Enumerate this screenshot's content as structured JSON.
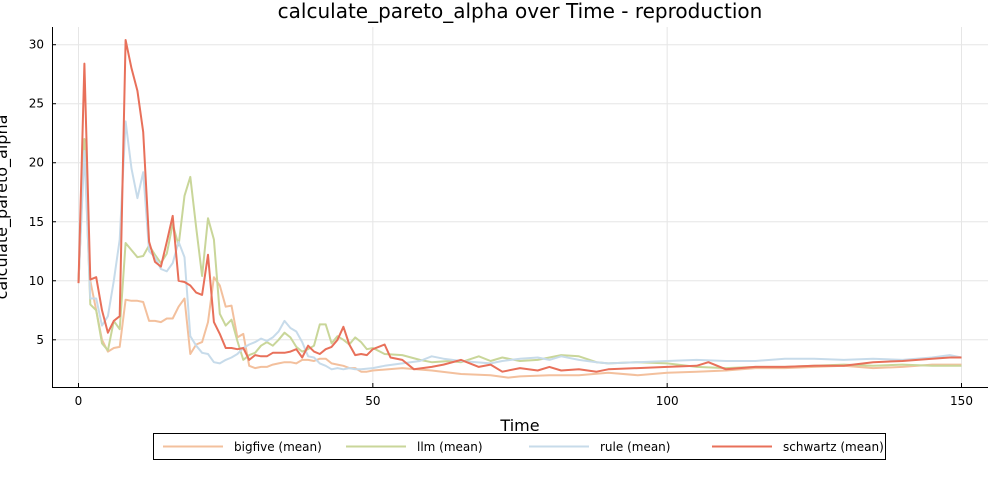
{
  "chart_data": {
    "type": "line",
    "title": "calculate_pareto_alpha over Time - reproduction",
    "xlabel": "Time",
    "ylabel": "calculate_pareto_alpha",
    "xlim": [
      -4.5,
      154.5
    ],
    "ylim": [
      1.0,
      31.5
    ],
    "xticks": [
      0,
      50,
      100,
      150
    ],
    "yticks": [
      5,
      10,
      15,
      20,
      25,
      30
    ],
    "grid": true,
    "legend_position": "bottom-center, outside plot, horizontal",
    "series": [
      {
        "name": "bigfive (mean)",
        "color": "#f3c09d",
        "points": [
          [
            0,
            9.8
          ],
          [
            1,
            22
          ],
          [
            2,
            10
          ],
          [
            3,
            7.5
          ],
          [
            4,
            5
          ],
          [
            5,
            4
          ],
          [
            6,
            4.3
          ],
          [
            7,
            4.4
          ],
          [
            8,
            8.4
          ],
          [
            9,
            8.3
          ],
          [
            10,
            8.3
          ],
          [
            11,
            8.2
          ],
          [
            12,
            6.6
          ],
          [
            13,
            6.6
          ],
          [
            14,
            6.5
          ],
          [
            15,
            6.8
          ],
          [
            16,
            6.8
          ],
          [
            17,
            7.8
          ],
          [
            18,
            8.5
          ],
          [
            19,
            3.8
          ],
          [
            20,
            4.6
          ],
          [
            21,
            4.8
          ],
          [
            22,
            6.5
          ],
          [
            23,
            10.3
          ],
          [
            24,
            9.6
          ],
          [
            25,
            7.8
          ],
          [
            26,
            7.9
          ],
          [
            27,
            5.2
          ],
          [
            28,
            5.5
          ],
          [
            29,
            2.8
          ],
          [
            30,
            2.6
          ],
          [
            31,
            2.7
          ],
          [
            32,
            2.7
          ],
          [
            33,
            2.9
          ],
          [
            34,
            3.0
          ],
          [
            35,
            3.1
          ],
          [
            36,
            3.1
          ],
          [
            37,
            3.0
          ],
          [
            38,
            3.3
          ],
          [
            39,
            3.3
          ],
          [
            40,
            3.2
          ],
          [
            41,
            3.4
          ],
          [
            42,
            3.4
          ],
          [
            43,
            3.0
          ],
          [
            44,
            2.9
          ],
          [
            45,
            2.8
          ],
          [
            46,
            2.6
          ],
          [
            47,
            2.6
          ],
          [
            48,
            2.3
          ],
          [
            49,
            2.3
          ],
          [
            50,
            2.4
          ],
          [
            55,
            2.6
          ],
          [
            60,
            2.4
          ],
          [
            65,
            2.1
          ],
          [
            70,
            2.0
          ],
          [
            73,
            1.8
          ],
          [
            75,
            1.9
          ],
          [
            80,
            2.0
          ],
          [
            85,
            2.0
          ],
          [
            90,
            2.2
          ],
          [
            95,
            2.0
          ],
          [
            100,
            2.2
          ],
          [
            105,
            2.3
          ],
          [
            110,
            2.4
          ],
          [
            115,
            2.6
          ],
          [
            120,
            2.6
          ],
          [
            125,
            2.7
          ],
          [
            130,
            2.8
          ],
          [
            135,
            2.6
          ],
          [
            140,
            2.7
          ],
          [
            145,
            2.9
          ],
          [
            150,
            2.9
          ]
        ]
      },
      {
        "name": "llm (mean)",
        "color": "#c9d699",
        "points": [
          [
            0,
            9.8
          ],
          [
            1,
            22
          ],
          [
            2,
            8
          ],
          [
            3,
            7.5
          ],
          [
            4,
            4.7
          ],
          [
            5,
            4.1
          ],
          [
            6,
            6.6
          ],
          [
            7,
            5.9
          ],
          [
            8,
            13.2
          ],
          [
            9,
            12.6
          ],
          [
            10,
            12.0
          ],
          [
            11,
            12.1
          ],
          [
            12,
            13.0
          ],
          [
            13,
            12.2
          ],
          [
            14,
            11.5
          ],
          [
            15,
            12.3
          ],
          [
            16,
            14.8
          ],
          [
            17,
            13.0
          ],
          [
            18,
            17.2
          ],
          [
            19,
            18.8
          ],
          [
            20,
            14.5
          ],
          [
            21,
            10.4
          ],
          [
            22,
            15.3
          ],
          [
            23,
            13.5
          ],
          [
            24,
            7.2
          ],
          [
            25,
            6.2
          ],
          [
            26,
            6.7
          ],
          [
            27,
            4.9
          ],
          [
            28,
            3.3
          ],
          [
            29,
            3.7
          ],
          [
            30,
            3.9
          ],
          [
            31,
            4.5
          ],
          [
            32,
            4.8
          ],
          [
            33,
            4.5
          ],
          [
            34,
            5.0
          ],
          [
            35,
            5.6
          ],
          [
            36,
            5.2
          ],
          [
            37,
            4.4
          ],
          [
            38,
            4.0
          ],
          [
            39,
            4.2
          ],
          [
            40,
            4.5
          ],
          [
            41,
            6.3
          ],
          [
            42,
            6.3
          ],
          [
            43,
            4.7
          ],
          [
            44,
            5.3
          ],
          [
            45,
            5.0
          ],
          [
            46,
            4.6
          ],
          [
            47,
            5.2
          ],
          [
            48,
            4.8
          ],
          [
            49,
            4.2
          ],
          [
            50,
            4.3
          ],
          [
            52,
            3.8
          ],
          [
            55,
            3.7
          ],
          [
            58,
            3.3
          ],
          [
            60,
            3.1
          ],
          [
            63,
            3.2
          ],
          [
            65,
            3.1
          ],
          [
            68,
            3.6
          ],
          [
            70,
            3.2
          ],
          [
            72,
            3.5
          ],
          [
            75,
            3.2
          ],
          [
            78,
            3.3
          ],
          [
            80,
            3.5
          ],
          [
            82,
            3.7
          ],
          [
            85,
            3.6
          ],
          [
            88,
            3.1
          ],
          [
            90,
            3.0
          ],
          [
            95,
            3.1
          ],
          [
            100,
            3.0
          ],
          [
            105,
            2.7
          ],
          [
            110,
            2.6
          ],
          [
            115,
            2.7
          ],
          [
            120,
            2.7
          ],
          [
            125,
            2.8
          ],
          [
            130,
            2.9
          ],
          [
            135,
            2.8
          ],
          [
            140,
            2.9
          ],
          [
            145,
            2.8
          ],
          [
            150,
            2.8
          ]
        ]
      },
      {
        "name": "rule (mean)",
        "color": "#c7dbea",
        "points": [
          [
            0,
            9.8
          ],
          [
            1,
            21
          ],
          [
            2,
            8.5
          ],
          [
            3,
            8.5
          ],
          [
            4,
            6.2
          ],
          [
            5,
            7
          ],
          [
            6,
            10
          ],
          [
            7,
            13.5
          ],
          [
            8,
            23.5
          ],
          [
            9,
            19.5
          ],
          [
            10,
            17.0
          ],
          [
            11,
            19.2
          ],
          [
            12,
            12.5
          ],
          [
            13,
            12.0
          ],
          [
            14,
            11.0
          ],
          [
            15,
            10.8
          ],
          [
            16,
            11.5
          ],
          [
            17,
            13.3
          ],
          [
            18,
            12.0
          ],
          [
            19,
            5.3
          ],
          [
            20,
            4.5
          ],
          [
            21,
            3.9
          ],
          [
            22,
            3.8
          ],
          [
            23,
            3.1
          ],
          [
            24,
            3.0
          ],
          [
            25,
            3.3
          ],
          [
            26,
            3.5
          ],
          [
            27,
            3.8
          ],
          [
            28,
            4.3
          ],
          [
            29,
            4.6
          ],
          [
            30,
            4.8
          ],
          [
            31,
            5.1
          ],
          [
            32,
            4.9
          ],
          [
            33,
            5.2
          ],
          [
            34,
            5.7
          ],
          [
            35,
            6.6
          ],
          [
            36,
            6.0
          ],
          [
            37,
            5.7
          ],
          [
            38,
            4.8
          ],
          [
            39,
            3.6
          ],
          [
            40,
            3.5
          ],
          [
            41,
            3.0
          ],
          [
            42,
            2.8
          ],
          [
            43,
            2.5
          ],
          [
            44,
            2.6
          ],
          [
            45,
            2.5
          ],
          [
            46,
            2.6
          ],
          [
            47,
            2.5
          ],
          [
            48,
            2.5
          ],
          [
            50,
            2.6
          ],
          [
            52,
            2.8
          ],
          [
            55,
            3.0
          ],
          [
            58,
            3.2
          ],
          [
            60,
            3.6
          ],
          [
            62,
            3.4
          ],
          [
            65,
            3.2
          ],
          [
            70,
            3.0
          ],
          [
            72,
            3.2
          ],
          [
            75,
            3.4
          ],
          [
            78,
            3.5
          ],
          [
            80,
            3.3
          ],
          [
            82,
            3.6
          ],
          [
            85,
            3.3
          ],
          [
            88,
            3.1
          ],
          [
            90,
            3.0
          ],
          [
            95,
            3.1
          ],
          [
            100,
            3.2
          ],
          [
            105,
            3.3
          ],
          [
            110,
            3.2
          ],
          [
            115,
            3.2
          ],
          [
            120,
            3.4
          ],
          [
            125,
            3.4
          ],
          [
            130,
            3.3
          ],
          [
            135,
            3.4
          ],
          [
            140,
            3.3
          ],
          [
            145,
            3.5
          ],
          [
            148,
            3.7
          ],
          [
            150,
            3.5
          ]
        ]
      },
      {
        "name": "schwartz (mean)",
        "color": "#e8705a",
        "points": [
          [
            0,
            9.8
          ],
          [
            1,
            28.4
          ],
          [
            2,
            10.1
          ],
          [
            3,
            10.3
          ],
          [
            4,
            7.5
          ],
          [
            5,
            5.6
          ],
          [
            6,
            6.6
          ],
          [
            7,
            7.0
          ],
          [
            8,
            30.4
          ],
          [
            9,
            28
          ],
          [
            10,
            26.1
          ],
          [
            11,
            22.6
          ],
          [
            12,
            13.3
          ],
          [
            13,
            11.6
          ],
          [
            14,
            11.2
          ],
          [
            15,
            13.3
          ],
          [
            16,
            15.5
          ],
          [
            17,
            10.0
          ],
          [
            18,
            9.9
          ],
          [
            19,
            9.6
          ],
          [
            20,
            9.0
          ],
          [
            21,
            8.8
          ],
          [
            22,
            12.2
          ],
          [
            23,
            6.5
          ],
          [
            24,
            5.5
          ],
          [
            25,
            4.3
          ],
          [
            26,
            4.3
          ],
          [
            27,
            4.2
          ],
          [
            28,
            4.3
          ],
          [
            29,
            3.3
          ],
          [
            30,
            3.7
          ],
          [
            31,
            3.6
          ],
          [
            32,
            3.6
          ],
          [
            33,
            3.9
          ],
          [
            34,
            3.9
          ],
          [
            35,
            3.9
          ],
          [
            36,
            4.0
          ],
          [
            37,
            4.2
          ],
          [
            38,
            3.5
          ],
          [
            39,
            4.5
          ],
          [
            40,
            4.0
          ],
          [
            41,
            3.8
          ],
          [
            42,
            4.2
          ],
          [
            43,
            4.4
          ],
          [
            44,
            5.0
          ],
          [
            45,
            6.1
          ],
          [
            46,
            4.6
          ],
          [
            47,
            3.7
          ],
          [
            48,
            3.8
          ],
          [
            49,
            3.7
          ],
          [
            50,
            4.2
          ],
          [
            52,
            4.6
          ],
          [
            53,
            3.5
          ],
          [
            55,
            3.3
          ],
          [
            57,
            2.5
          ],
          [
            60,
            2.7
          ],
          [
            62,
            2.9
          ],
          [
            65,
            3.3
          ],
          [
            68,
            2.7
          ],
          [
            70,
            2.9
          ],
          [
            72,
            2.3
          ],
          [
            75,
            2.6
          ],
          [
            78,
            2.4
          ],
          [
            80,
            2.7
          ],
          [
            82,
            2.4
          ],
          [
            85,
            2.5
          ],
          [
            88,
            2.3
          ],
          [
            90,
            2.5
          ],
          [
            95,
            2.6
          ],
          [
            100,
            2.7
          ],
          [
            105,
            2.8
          ],
          [
            107,
            3.1
          ],
          [
            110,
            2.5
          ],
          [
            115,
            2.7
          ],
          [
            120,
            2.7
          ],
          [
            125,
            2.8
          ],
          [
            130,
            2.8
          ],
          [
            135,
            3.1
          ],
          [
            140,
            3.2
          ],
          [
            145,
            3.4
          ],
          [
            148,
            3.5
          ],
          [
            150,
            3.5
          ]
        ]
      }
    ]
  }
}
